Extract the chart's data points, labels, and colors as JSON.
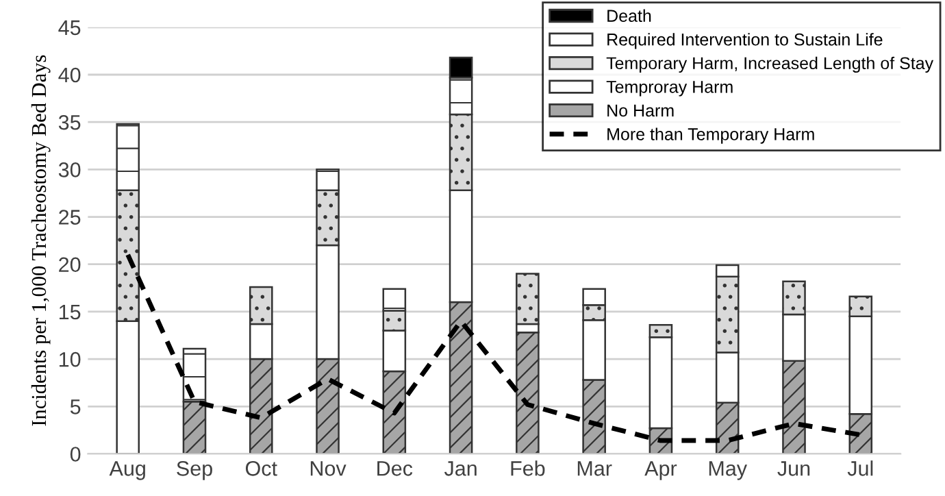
{
  "chart_data": {
    "type": "bar",
    "stacked": true,
    "ylabel": "Incidents per 1,000 Tracheostomy Bed Days",
    "categories": [
      "Aug",
      "Sep",
      "Oct",
      "Nov",
      "Dec",
      "Jan",
      "Feb",
      "Mar",
      "Apr",
      "May",
      "Jun",
      "Jul"
    ],
    "series": [
      {
        "name": "No Harm",
        "color": "#a6a6a6",
        "values": [
          null,
          5.5,
          10,
          10,
          8.7,
          16,
          12.8,
          7.8,
          2.7,
          5.4,
          9.8,
          4.2
        ]
      },
      {
        "name": "Temproray Harm",
        "color": "#ffffff",
        "values": [
          14,
          null,
          3.7,
          12,
          4.3,
          11.8,
          0.9,
          6.3,
          9.6,
          5.3,
          4.9,
          10.3
        ]
      },
      {
        "name": "Temporary Harm, Increased Length of Stay",
        "color": "#d9d9d9",
        "values": [
          13.8,
          null,
          3.9,
          5.8,
          2.1,
          8,
          5.3,
          1.6,
          1.3,
          8,
          3.5,
          2.1
        ]
      },
      {
        "name": "Required Intervention to Sustain Life",
        "color": "#ffffff",
        "values": [
          7,
          5.6,
          null,
          2.2,
          2.3,
          3.9,
          null,
          1.7,
          null,
          1.2,
          null,
          null
        ]
      },
      {
        "name": "Death",
        "color": "#000000",
        "values": [
          null,
          null,
          null,
          null,
          null,
          2.1,
          null,
          null,
          null,
          null,
          null,
          null
        ]
      },
      {
        "name": "More than Temporary Harm",
        "type": "line",
        "color": "#000000",
        "line_style": "dashed",
        "values": [
          21,
          5.5,
          3.8,
          7.9,
          4.3,
          14,
          5.2,
          3.2,
          1.4,
          1.4,
          3.2,
          2
        ]
      }
    ],
    "ylim": [
      0,
      45
    ],
    "yticks": [
      0,
      5,
      10,
      15,
      20,
      25,
      30,
      35,
      40,
      45
    ],
    "grid": "y",
    "legend": "top right"
  }
}
